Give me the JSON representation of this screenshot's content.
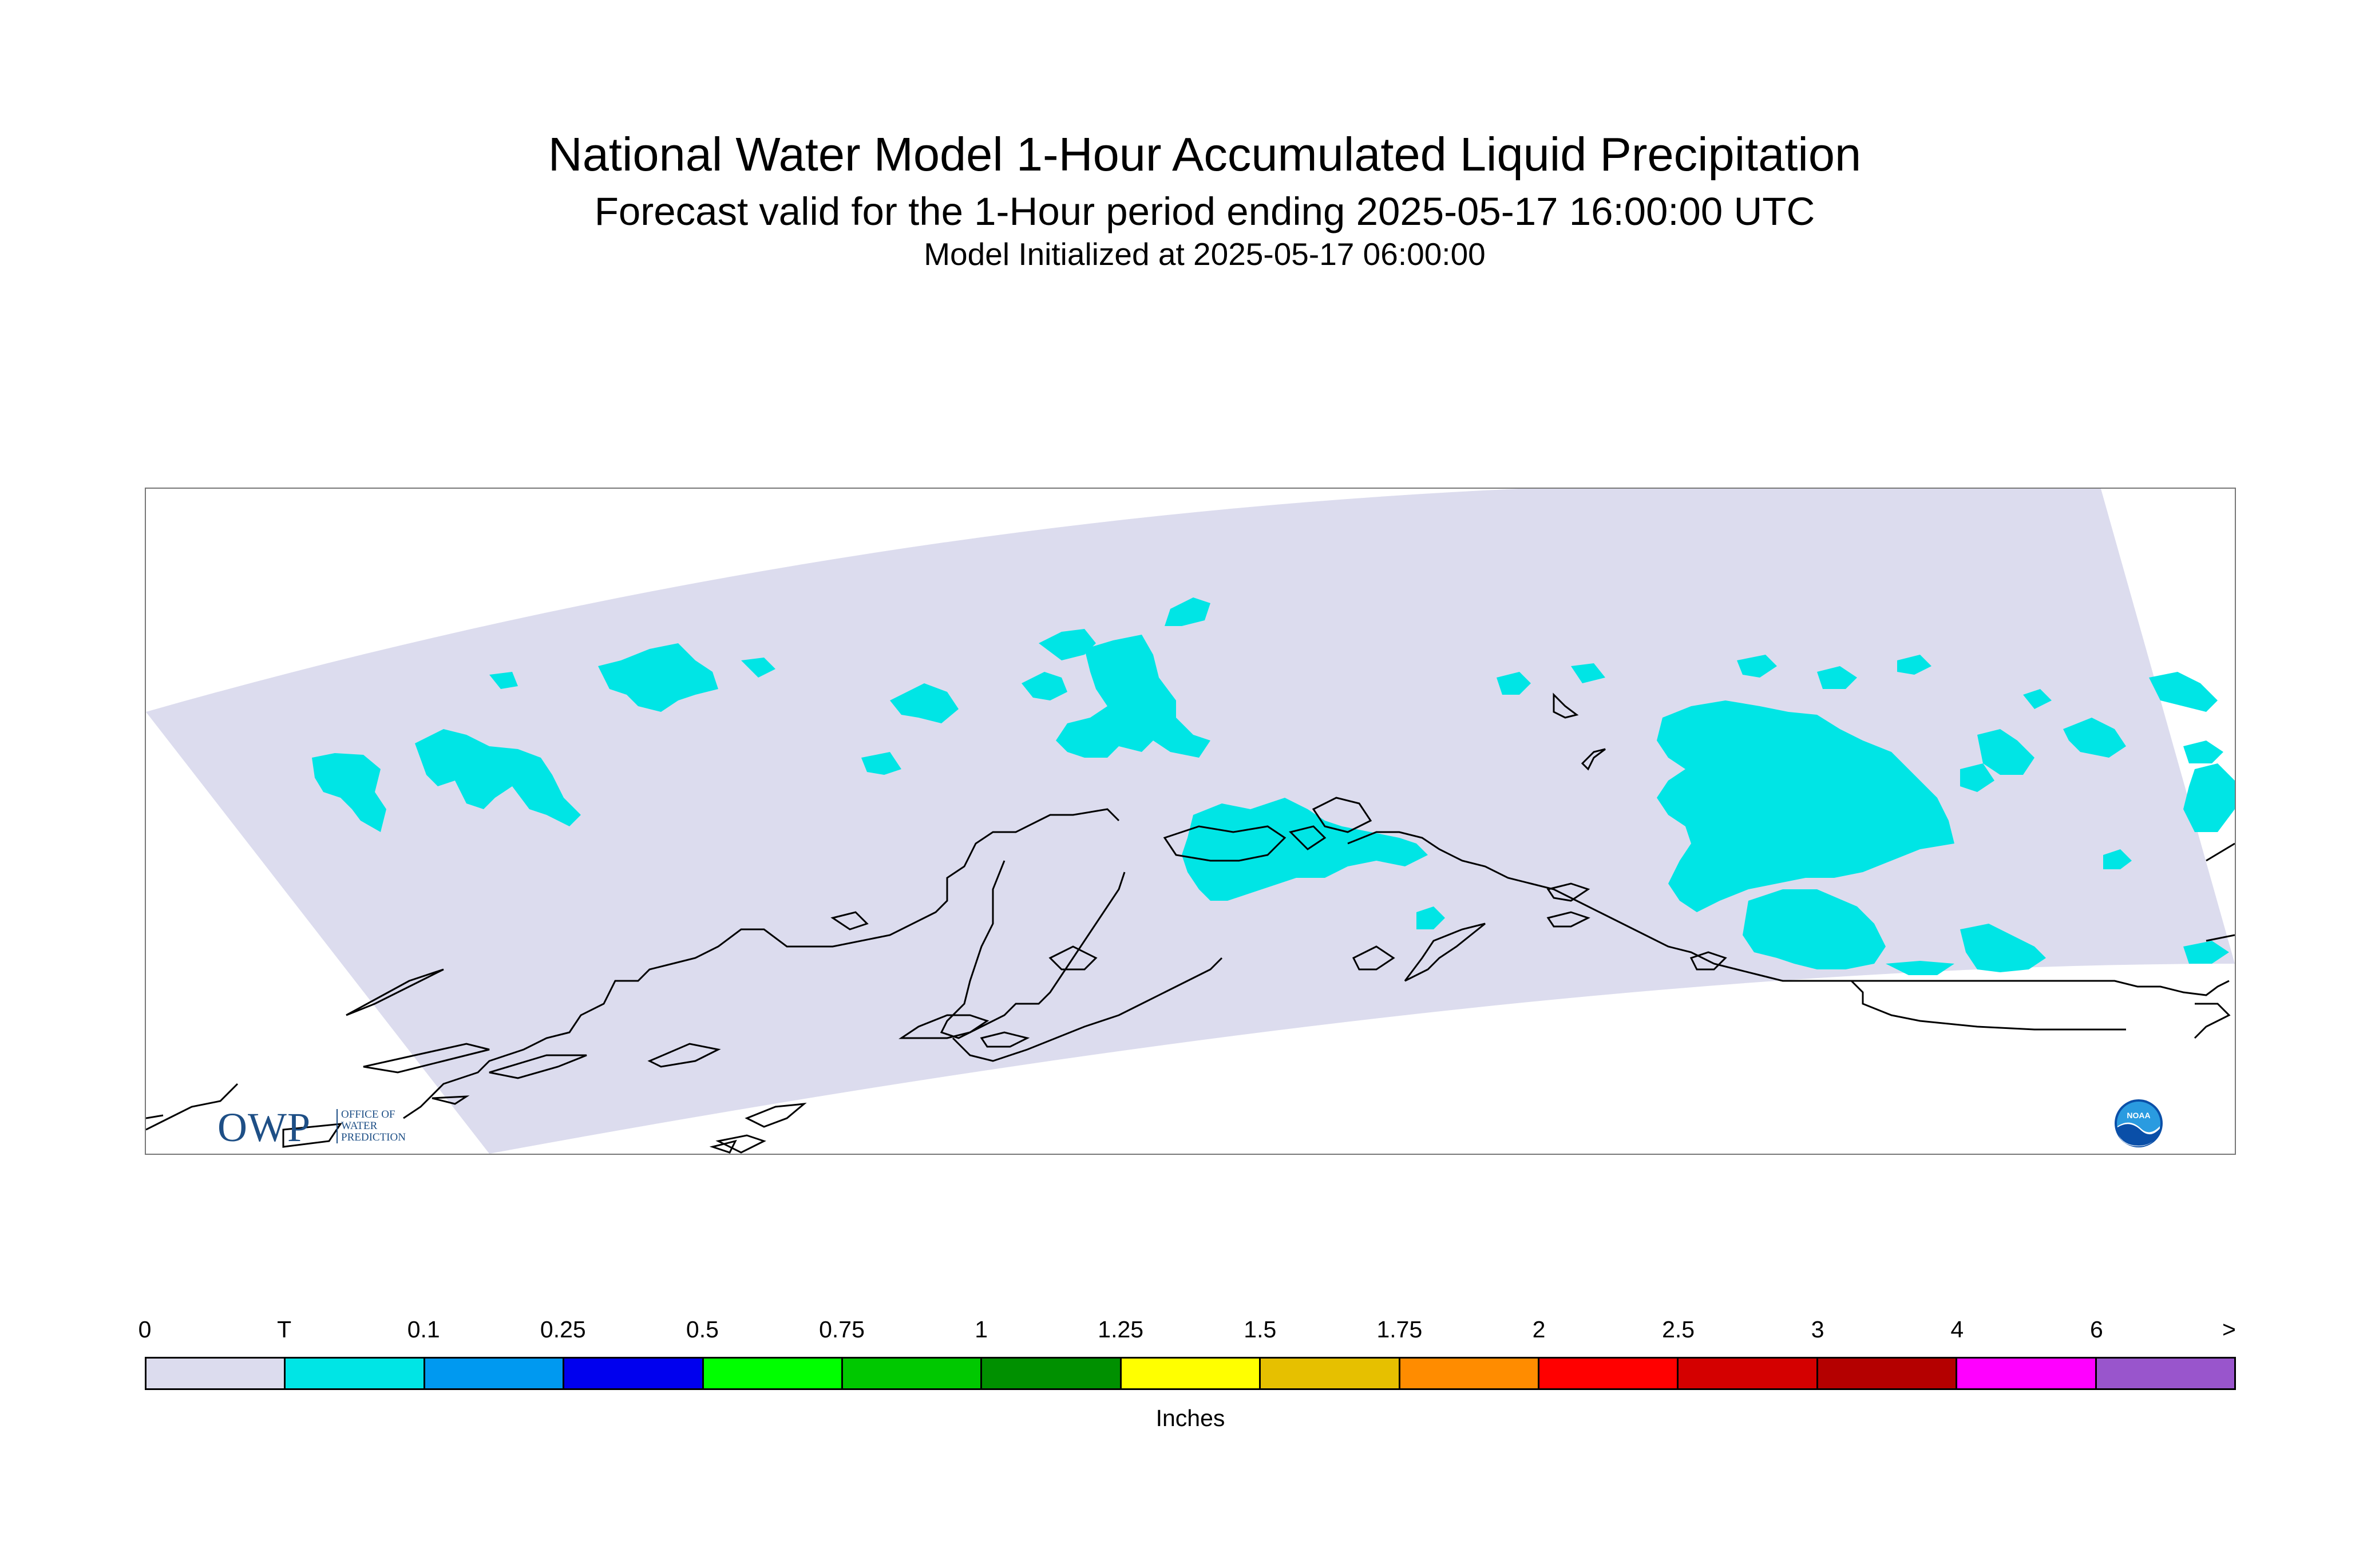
{
  "title": "National Water Model 1-Hour Accumulated Liquid Precipitation",
  "subtitle": "Forecast valid for the 1-Hour period ending 2025-05-17 16:00:00 UTC",
  "init_text": "Model Initialized at 2025-05-17 06:00:00",
  "map": {
    "domain_fill": "#dcdcee",
    "precip_color": "#00e5e5",
    "coastline_color": "#000000"
  },
  "logos": {
    "owp": {
      "text": "OWP",
      "subtext": "OFFICE OF\nWATER\nPREDICTION"
    },
    "noaa": {
      "text": "NOAA"
    }
  },
  "legend": {
    "tick_labels": [
      "0",
      "T",
      "0.1",
      "0.25",
      "0.5",
      "0.75",
      "1",
      "1.25",
      "1.5",
      "1.75",
      "2",
      "2.5",
      "3",
      "4",
      "6",
      ">"
    ],
    "colors": [
      "#dcdcee",
      "#00e5e5",
      "#0099f0",
      "#0000ee",
      "#00ff00",
      "#00c800",
      "#009000",
      "#ffff00",
      "#e6c000",
      "#ff8c00",
      "#ff0000",
      "#d40000",
      "#b40000",
      "#ff00ff",
      "#9955cc"
    ],
    "unit": "Inches"
  }
}
